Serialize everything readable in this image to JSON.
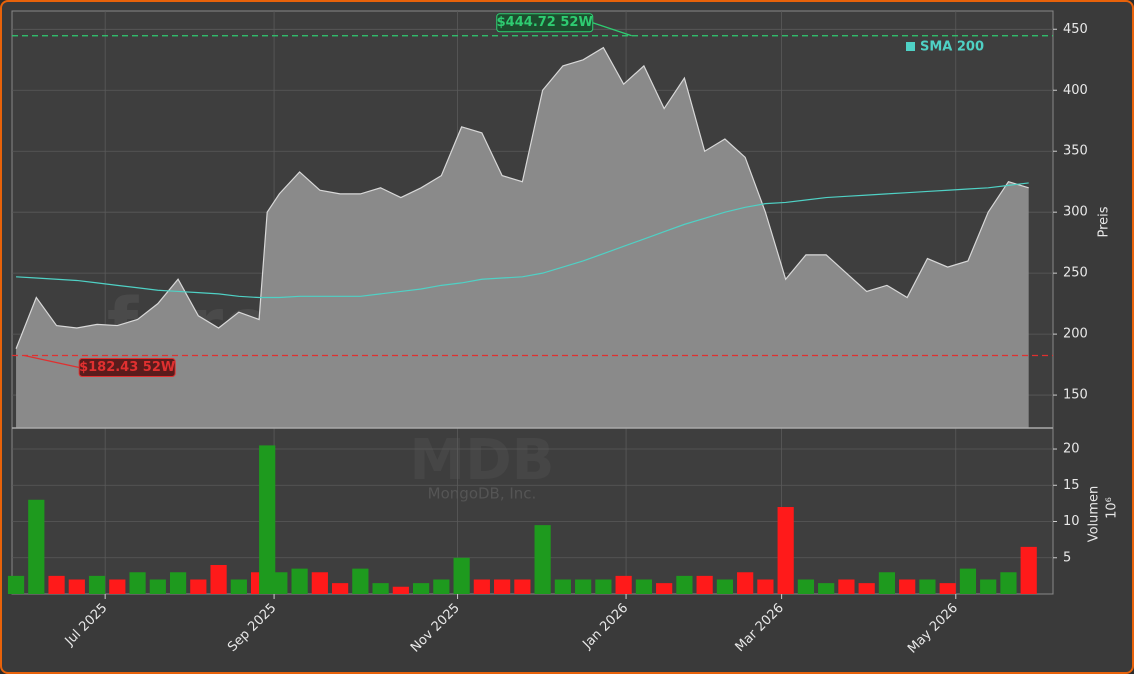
{
  "chart_data": [
    {
      "type": "area",
      "x": [
        0,
        5,
        10,
        15,
        20,
        25,
        30,
        35,
        40,
        45,
        50,
        55,
        60,
        62,
        65,
        70,
        75,
        80,
        85,
        90,
        95,
        100,
        105,
        110,
        115,
        120,
        125,
        130,
        135,
        140,
        145,
        150,
        155,
        160,
        165,
        170,
        175,
        180,
        185,
        190,
        195,
        200,
        205,
        210,
        215,
        220,
        225,
        230,
        235,
        240,
        245,
        250
      ],
      "series": [
        {
          "name": "MDB",
          "color": "#8a8a8a",
          "values": [
            188,
            230,
            207,
            205,
            208,
            207,
            212,
            225,
            245,
            215,
            205,
            218,
            212,
            300,
            315,
            333,
            318,
            315,
            315,
            320,
            312,
            320,
            330,
            370,
            365,
            330,
            325,
            400,
            420,
            425,
            435,
            405,
            420,
            385,
            410,
            350,
            360,
            345,
            300,
            245,
            265,
            265,
            250,
            235,
            240,
            230,
            262,
            255,
            260,
            300,
            325,
            320
          ]
        },
        {
          "name": "SMA 200",
          "color": "#4fd1c5",
          "values": [
            247,
            246,
            245,
            244,
            242,
            240,
            238,
            236,
            235,
            234,
            233,
            231,
            230,
            230,
            230,
            231,
            231,
            231,
            231,
            233,
            235,
            237,
            240,
            242,
            245,
            246,
            247,
            250,
            255,
            260,
            266,
            272,
            278,
            284,
            290,
            295,
            300,
            304,
            307,
            308,
            310,
            312,
            313,
            314,
            315,
            316,
            317,
            318,
            319,
            320,
            322,
            324
          ]
        }
      ],
      "xlim": [
        -1,
        256
      ],
      "xticks": [
        {
          "value": 22,
          "label": "Jul 2025"
        },
        {
          "value": 63.7,
          "label": "Sep 2025"
        },
        {
          "value": 109,
          "label": "Nov 2025"
        },
        {
          "value": 150.6,
          "label": "Jan 2026"
        },
        {
          "value": 189,
          "label": "Mar 2026"
        },
        {
          "value": 232,
          "label": "May 2026"
        }
      ],
      "ylim": [
        123,
        465
      ],
      "yticks": [
        150,
        200,
        250,
        300,
        350,
        400,
        450
      ],
      "y_label": "Preis",
      "high": {
        "value": 444.72,
        "label": "$444.72 52W",
        "x": 152,
        "color": "#2ecc71"
      },
      "low": {
        "value": 182.43,
        "label": "$182.43 52W",
        "x": 2,
        "color": "#e03030"
      },
      "watermark": "forexsignale.trade",
      "legend": "top-right",
      "grid": true
    },
    {
      "type": "bar",
      "ticker": "MDB",
      "company": "MongoDB, Inc.",
      "values": [
        2.5,
        13,
        2.5,
        2,
        2.5,
        2,
        3,
        2,
        3,
        2,
        4,
        2,
        3,
        20.5,
        3,
        3.5,
        3,
        1.5,
        3.5,
        1.5,
        1,
        1.5,
        2,
        5,
        2,
        2,
        2,
        9.5,
        2,
        2,
        2,
        2.5,
        2,
        1.5,
        2.5,
        2.5,
        2,
        3,
        2,
        12,
        2,
        1.5,
        2,
        1.5,
        3,
        2,
        2,
        1.5,
        3.5,
        2,
        3,
        6.5
      ],
      "up_color": "#1e9a1e",
      "down_color": "#ff1a1a",
      "ylim": [
        0,
        22.9
      ],
      "yticks": [
        5,
        10,
        15,
        20
      ],
      "y_label": "Volumen",
      "y_unit": "10⁶",
      "grid": true
    }
  ]
}
